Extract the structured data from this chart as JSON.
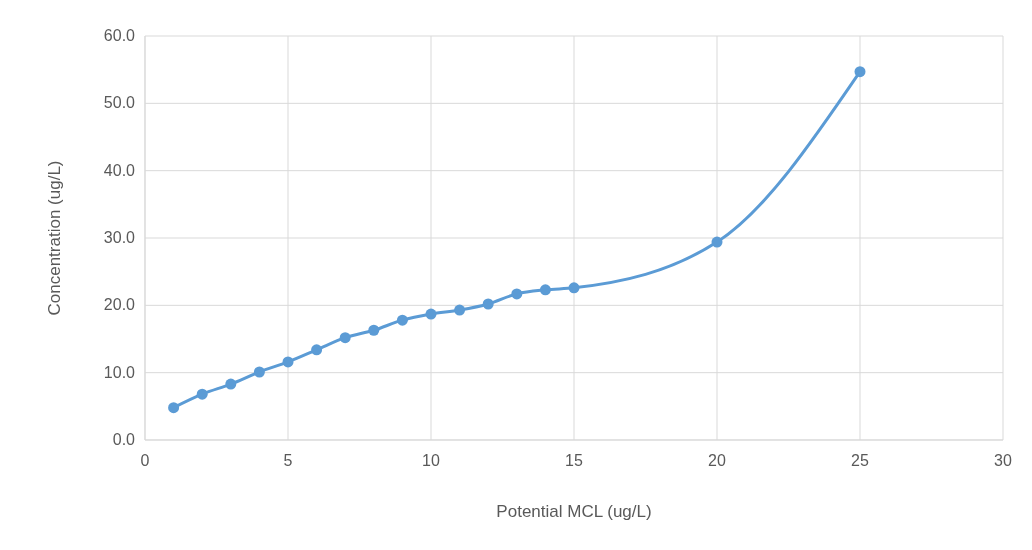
{
  "chart_data": {
    "type": "line",
    "xlabel": "Potential MCL (ug/L)",
    "ylabel": "Concentration (ug/L)",
    "x": [
      1,
      2,
      3,
      4,
      5,
      6,
      7,
      8,
      9,
      10,
      11,
      12,
      13,
      14,
      15,
      20,
      25
    ],
    "series": [
      {
        "color": "#5b9bd5",
        "values": [
          4.8,
          6.8,
          8.3,
          10.1,
          11.6,
          13.4,
          15.2,
          16.3,
          17.8,
          18.7,
          19.3,
          20.2,
          21.7,
          22.3,
          22.6,
          29.4,
          54.7
        ]
      }
    ],
    "xlim": [
      0,
      30
    ],
    "xticks": [
      0,
      5,
      10,
      15,
      20,
      25,
      30
    ],
    "ylim": [
      0,
      60
    ],
    "yticks": [
      {
        "value": 0,
        "label": "0.0"
      },
      {
        "value": 10,
        "label": "10.0"
      },
      {
        "value": 20,
        "label": "20.0"
      },
      {
        "value": 30,
        "label": "30.0"
      },
      {
        "value": 40,
        "label": "40.0"
      },
      {
        "value": 50,
        "label": "50.0"
      },
      {
        "value": 60,
        "label": "60.0"
      }
    ],
    "grid": true,
    "marker": "circle"
  }
}
